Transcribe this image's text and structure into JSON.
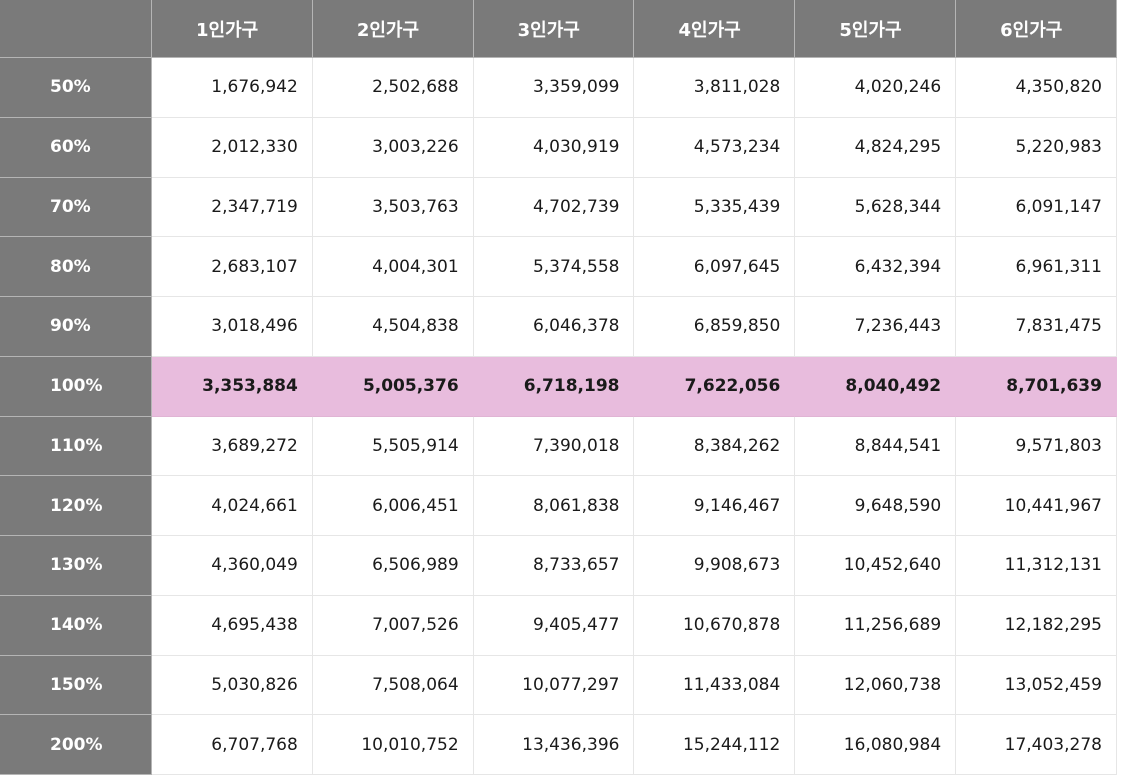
{
  "table": {
    "corner": "",
    "columns": [
      "1인가구",
      "2인가구",
      "3인가구",
      "4인가구",
      "5인가구",
      "6인가구"
    ],
    "highlight_color": "#e8bcdd",
    "header_color": "#7a7a7a",
    "rows": [
      {
        "label": "50%",
        "values": [
          "1,676,942",
          "2,502,688",
          "3,359,099",
          "3,811,028",
          "4,020,246",
          "4,350,820"
        ],
        "highlighted": false
      },
      {
        "label": "60%",
        "values": [
          "2,012,330",
          "3,003,226",
          "4,030,919",
          "4,573,234",
          "4,824,295",
          "5,220,983"
        ],
        "highlighted": false
      },
      {
        "label": "70%",
        "values": [
          "2,347,719",
          "3,503,763",
          "4,702,739",
          "5,335,439",
          "5,628,344",
          "6,091,147"
        ],
        "highlighted": false
      },
      {
        "label": "80%",
        "values": [
          "2,683,107",
          "4,004,301",
          "5,374,558",
          "6,097,645",
          "6,432,394",
          "6,961,311"
        ],
        "highlighted": false
      },
      {
        "label": "90%",
        "values": [
          "3,018,496",
          "4,504,838",
          "6,046,378",
          "6,859,850",
          "7,236,443",
          "7,831,475"
        ],
        "highlighted": false
      },
      {
        "label": "100%",
        "values": [
          "3,353,884",
          "5,005,376",
          "6,718,198",
          "7,622,056",
          "8,040,492",
          "8,701,639"
        ],
        "highlighted": true
      },
      {
        "label": "110%",
        "values": [
          "3,689,272",
          "5,505,914",
          "7,390,018",
          "8,384,262",
          "8,844,541",
          "9,571,803"
        ],
        "highlighted": false
      },
      {
        "label": "120%",
        "values": [
          "4,024,661",
          "6,006,451",
          "8,061,838",
          "9,146,467",
          "9,648,590",
          "10,441,967"
        ],
        "highlighted": false
      },
      {
        "label": "130%",
        "values": [
          "4,360,049",
          "6,506,989",
          "8,733,657",
          "9,908,673",
          "10,452,640",
          "11,312,131"
        ],
        "highlighted": false
      },
      {
        "label": "140%",
        "values": [
          "4,695,438",
          "7,007,526",
          "9,405,477",
          "10,670,878",
          "11,256,689",
          "12,182,295"
        ],
        "highlighted": false
      },
      {
        "label": "150%",
        "values": [
          "5,030,826",
          "7,508,064",
          "10,077,297",
          "11,433,084",
          "12,060,738",
          "13,052,459"
        ],
        "highlighted": false
      },
      {
        "label": "200%",
        "values": [
          "6,707,768",
          "10,010,752",
          "13,436,396",
          "15,244,112",
          "16,080,984",
          "17,403,278"
        ],
        "highlighted": false
      }
    ]
  }
}
